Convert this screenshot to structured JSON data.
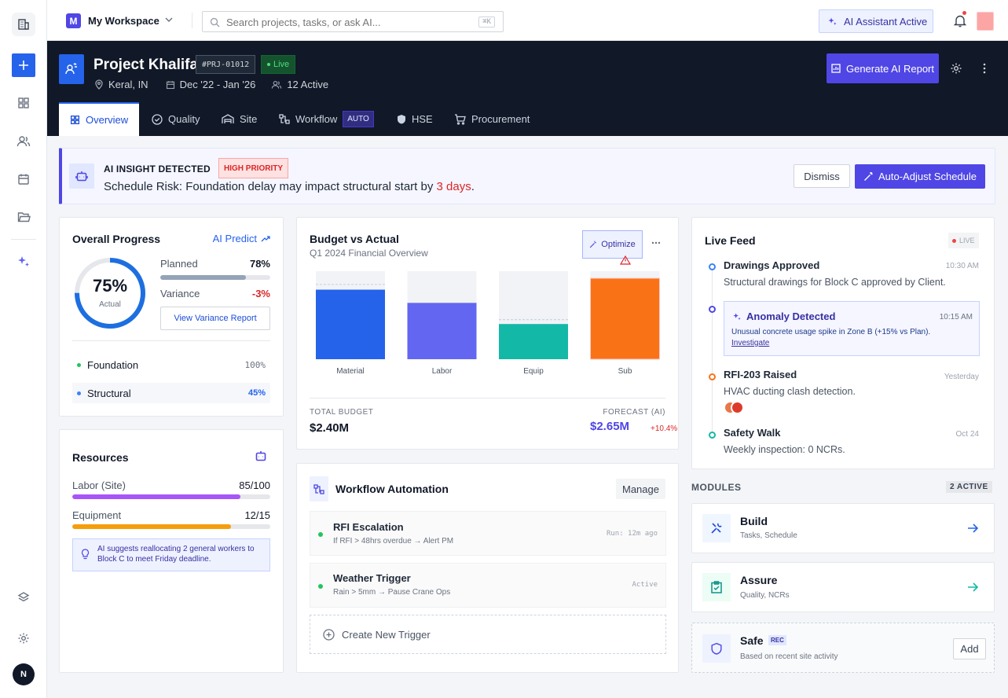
{
  "workspace": {
    "initial": "M",
    "name": "My Workspace"
  },
  "search": {
    "placeholder": "Search projects, tasks, or ask AI...",
    "shortcut": "⌘K"
  },
  "ai_status": "AI Assistant Active",
  "user_initial": "N",
  "project": {
    "name": "Project Khalifa",
    "id": "#PRJ-01012",
    "status": "Live",
    "location": "Keral, IN",
    "dates": "Dec '22 - Jan '26",
    "active": "12 Active",
    "generate_label": "Generate AI Report"
  },
  "tabs": [
    {
      "label": "Overview"
    },
    {
      "label": "Quality"
    },
    {
      "label": "Site"
    },
    {
      "label": "Workflow",
      "badge": "AUTO"
    },
    {
      "label": "HSE"
    },
    {
      "label": "Procurement"
    }
  ],
  "insight": {
    "title": "AI INSIGHT DETECTED",
    "priority": "HIGH PRIORITY",
    "message": "Schedule Risk: Foundation delay may impact structural start by",
    "highlight": "3 days",
    "end": ".",
    "dismiss": "Dismiss",
    "action": "Auto-Adjust Schedule"
  },
  "progress": {
    "title": "Overall Progress",
    "ai_predict": "AI Predict",
    "percent_text": "75%",
    "percent": 0.75,
    "center_label": "Actual",
    "planned_label": "Planned",
    "planned_value": "78%",
    "planned_fill": 0.78,
    "variance_label": "Variance",
    "variance_value": "-3%",
    "report_button": "View Variance Report",
    "phases": [
      {
        "name": "Foundation",
        "value": "100%"
      },
      {
        "name": "Structural",
        "value": "45%"
      }
    ]
  },
  "resources": {
    "title": "Resources",
    "items": [
      {
        "label": "Labor (Site)",
        "value": "85/100",
        "fill": 0.85,
        "color": "#a855f7"
      },
      {
        "label": "Equipment",
        "value": "12/15",
        "fill": 0.8,
        "color": "#f59e0b"
      }
    ],
    "suggestion": "AI suggests reallocating 2 general workers to Block C to meet Friday deadline."
  },
  "budget": {
    "title": "Budget vs Actual",
    "subtitle": "Q1 2024 Financial Overview",
    "optimize": "Optimize",
    "total_label": "TOTAL BUDGET",
    "total_value": "$2.40M",
    "forecast_label": "FORECAST (AI)",
    "forecast_value": "$2.65M",
    "forecast_delta": "+10.4%"
  },
  "chart_data": {
    "type": "bar",
    "categories": [
      "Material",
      "Labor",
      "Equip",
      "Sub"
    ],
    "values": [
      0.79,
      0.64,
      0.4,
      0.92
    ],
    "budget_line": [
      0.85,
      null,
      0.45,
      null
    ],
    "colors": [
      "#2563eb",
      "#6366f1",
      "#14b8a6",
      "#f97316"
    ]
  },
  "workflow": {
    "title": "Workflow Automation",
    "manage": "Manage",
    "items": [
      {
        "name": "RFI Escalation",
        "rule": "If RFI > 48hrs overdue → Alert PM",
        "status": "Run: 12m ago"
      },
      {
        "name": "Weather Trigger",
        "rule": "Rain > 5mm → Pause Crane Ops",
        "status": "Active"
      }
    ],
    "create": "Create New Trigger"
  },
  "feed": {
    "title": "Live Feed",
    "live": "LIVE",
    "items": [
      {
        "title": "Drawings Approved",
        "time": "10:30 AM",
        "text": "Structural drawings for Block C approved by Client."
      },
      {
        "title": "Anomaly Detected",
        "time": "10:15 AM",
        "text": "Unusual concrete usage spike in Zone B (+15% vs Plan).",
        "link": "Investigate"
      },
      {
        "title": "RFI-203 Raised",
        "time": "Yesterday",
        "text": "HVAC ducting clash detection."
      },
      {
        "title": "Safety Walk",
        "time": "Oct 24",
        "text": "Weekly inspection: 0 NCRs."
      }
    ]
  },
  "modules": {
    "title": "MODULES",
    "count": "2 ACTIVE",
    "items": [
      {
        "name": "Build",
        "desc": "Tasks, Schedule"
      },
      {
        "name": "Assure",
        "desc": "Quality, NCRs"
      },
      {
        "name": "Safe",
        "badge": "REC",
        "desc": "Based on recent site activity",
        "action": "Add"
      }
    ]
  }
}
